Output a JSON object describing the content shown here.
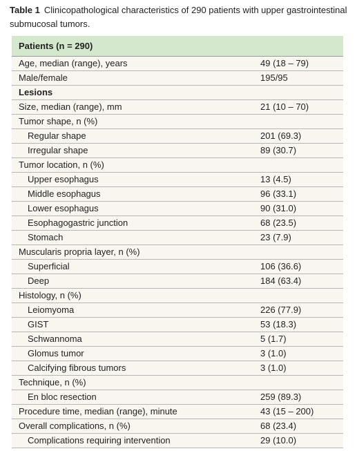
{
  "table": {
    "caption": {
      "label": "Table 1",
      "text": "Clinicopathological characteristics of 290 patients with upper gastrointestinal submucosal tumors."
    },
    "header": "Patients (n = 290)",
    "rows": [
      [
        "Age, median (range), years",
        "49 (18 – 79)"
      ],
      [
        "Male/female",
        "195/95"
      ],
      [
        "Lesions"
      ],
      [
        "Size, median (range), mm",
        "21 (10 – 70)"
      ],
      [
        "Tumor shape, n (%)"
      ],
      [
        "Regular shape",
        "201 (69.3)"
      ],
      [
        "Irregular shape",
        "89 (30.7)"
      ],
      [
        "Tumor location, n (%)"
      ],
      [
        "Upper esophagus",
        "13 (4.5)"
      ],
      [
        "Middle esophagus",
        "96 (33.1)"
      ],
      [
        "Lower esophagus",
        "90 (31.0)"
      ],
      [
        "Esophagogastric junction",
        "68 (23.5)"
      ],
      [
        "Stomach",
        "23 (7.9)"
      ],
      [
        "Muscularis propria layer, n (%)"
      ],
      [
        "Superficial",
        "106 (36.6)"
      ],
      [
        "Deep",
        "184 (63.4)"
      ],
      [
        "Histology, n (%)"
      ],
      [
        "Leiomyoma",
        "226 (77.9)"
      ],
      [
        "GIST",
        "53 (18.3)"
      ],
      [
        "Schwannoma",
        "5 (1.7)"
      ],
      [
        "Glomus tumor",
        "3 (1.0)"
      ],
      [
        "Calcifying fibrous tumors",
        "3 (1.0)"
      ],
      [
        "Technique, n (%)"
      ],
      [
        "En bloc resection",
        "259 (89.3)"
      ],
      [
        "Procedure time, median (range), minute",
        "43 (15 – 200)"
      ],
      [
        "Overall complications, n (%)",
        "68 (23.4)"
      ],
      [
        "Complications requiring intervention",
        "29 (10.0)"
      ]
    ]
  }
}
